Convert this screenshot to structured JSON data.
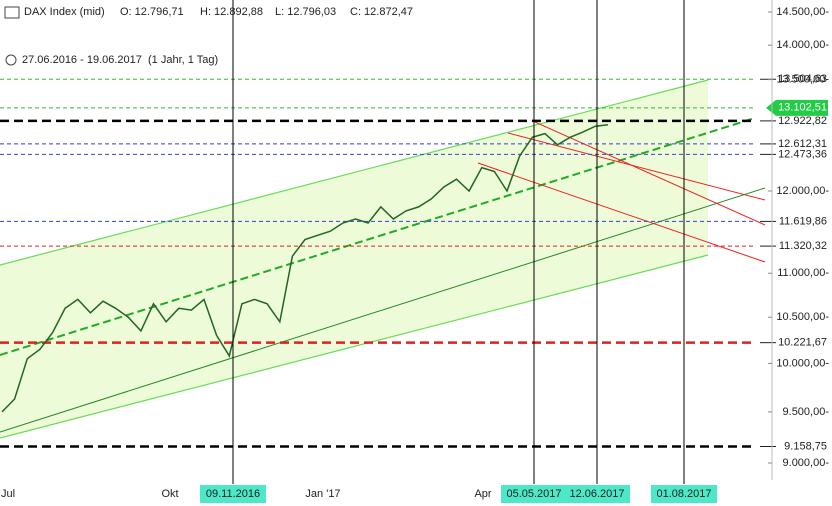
{
  "chart_data": {
    "type": "line",
    "title": "DAX Index (mid)",
    "ohlc_labels": [
      "O: 12.796,71",
      "H: 12.892,88",
      "L: 12.796,03",
      "C: 12.872,47"
    ],
    "subtitle": "27.06.2016 - 19.06.2017",
    "subtitle_note": "(1 Jahr, 1 Tag)",
    "log_scale": true,
    "ylim": [
      8840,
      14685
    ],
    "yticks": [
      {
        "value": 14500,
        "label": "14.500,00-"
      },
      {
        "value": 14000,
        "label": "14.000,00-"
      },
      {
        "value": 13500,
        "label": "13.500,00-"
      },
      {
        "value": 12000,
        "label": "12.000,00-"
      },
      {
        "value": 11000,
        "label": "11.000,00-"
      },
      {
        "value": 10500,
        "label": "10.500,00-"
      },
      {
        "value": 10000,
        "label": "10.000,00-"
      },
      {
        "value": 9500,
        "label": "9.500,00-"
      },
      {
        "value": 9000,
        "label": "9.000,00-"
      }
    ],
    "x_labels": [
      "Jul",
      "Okt",
      "Jan '17",
      "Apr"
    ],
    "markers": [
      {
        "label": "09.11.2016"
      },
      {
        "label": "05.05.2017"
      },
      {
        "label": "12.06.2017"
      },
      {
        "label": "01.08.2017"
      }
    ],
    "marker_color": "#4de8c8",
    "levels": [
      {
        "value": 13504.63,
        "label": "13.504,63",
        "color": "#33bb33",
        "width": 1
      },
      {
        "value": 13102.51,
        "label": "13.102,51",
        "color": "#33bb33",
        "width": 1,
        "tag": true
      },
      {
        "value": 12922.82,
        "label": "12.922,82",
        "color": "#000000",
        "width": 2.5
      },
      {
        "value": 12612.31,
        "label": "12.612,31",
        "color": "#3344cc",
        "width": 1
      },
      {
        "value": 12473.36,
        "label": "12.473,36",
        "color": "#3344cc",
        "width": 1
      },
      {
        "value": 11619.86,
        "label": "11.619,86",
        "color": "#3344cc",
        "width": 1
      },
      {
        "value": 11320.32,
        "label": "11.320,32",
        "color": "#dd2222",
        "width": 1
      },
      {
        "value": 10221.67,
        "label": "10.221,67",
        "color": "#dd2222",
        "width": 2.5
      },
      {
        "value": 9158.75,
        "label": "9.158,75",
        "color": "#000000",
        "width": 2.5
      }
    ],
    "series": [
      {
        "color": "#226622",
        "values": [
          9500,
          9630,
          10050,
          10150,
          10330,
          10600,
          10700,
          10550,
          10680,
          10600,
          10500,
          10350,
          10650,
          10450,
          10600,
          10580,
          10700,
          10300,
          10080,
          10650,
          10700,
          10650,
          10450,
          11200,
          11400,
          11450,
          11500,
          11600,
          11650,
          11600,
          11800,
          11650,
          11750,
          11800,
          11900,
          12050,
          12150,
          12000,
          12300,
          12250,
          12000,
          12450,
          12700,
          12750,
          12600,
          12700,
          12770,
          12850,
          12870
        ]
      }
    ]
  }
}
